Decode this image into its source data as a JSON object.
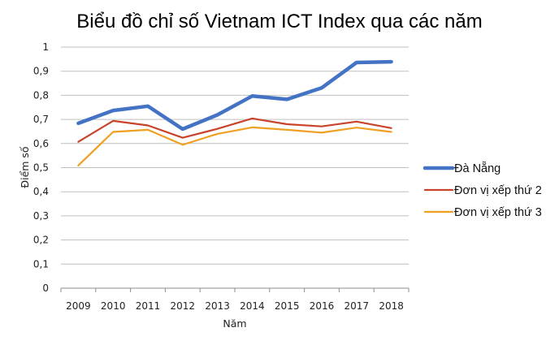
{
  "chart_data": {
    "type": "line",
    "title": "Biểu đồ chỉ số Vietnam ICT Index qua các năm",
    "xlabel": "Năm",
    "ylabel": "Điểm số",
    "categories": [
      "2009",
      "2010",
      "2011",
      "2012",
      "2013",
      "2014",
      "2015",
      "2016",
      "2017",
      "2018"
    ],
    "ylim": [
      0,
      1
    ],
    "y_ticks": [
      0,
      0.1,
      0.2,
      0.3,
      0.4,
      0.5,
      0.6,
      0.7,
      0.8,
      0.9,
      1
    ],
    "y_tick_labels": [
      "0",
      "0,1",
      "0,2",
      "0,3",
      "0,4",
      "0,5",
      "0,6",
      "0,7",
      "0,8",
      "0,9",
      "1"
    ],
    "grid": true,
    "legend_position": "right",
    "series": [
      {
        "name": "Đà Nẵng",
        "color": "#4472C4",
        "emphasis": "thick",
        "values": [
          0.684,
          0.737,
          0.755,
          0.66,
          0.719,
          0.797,
          0.783,
          0.831,
          0.936,
          0.939
        ]
      },
      {
        "name": "Đơn vị xếp thứ 2",
        "color": "#C9432B",
        "emphasis": "normal",
        "values": [
          0.607,
          0.694,
          0.675,
          0.624,
          0.661,
          0.704,
          0.68,
          0.671,
          0.691,
          0.664
        ]
      },
      {
        "name": "Đơn vị xếp thứ 3",
        "color": "#EFA023",
        "emphasis": "normal",
        "values": [
          0.509,
          0.648,
          0.657,
          0.595,
          0.64,
          0.667,
          0.657,
          0.645,
          0.666,
          0.648
        ]
      }
    ]
  }
}
